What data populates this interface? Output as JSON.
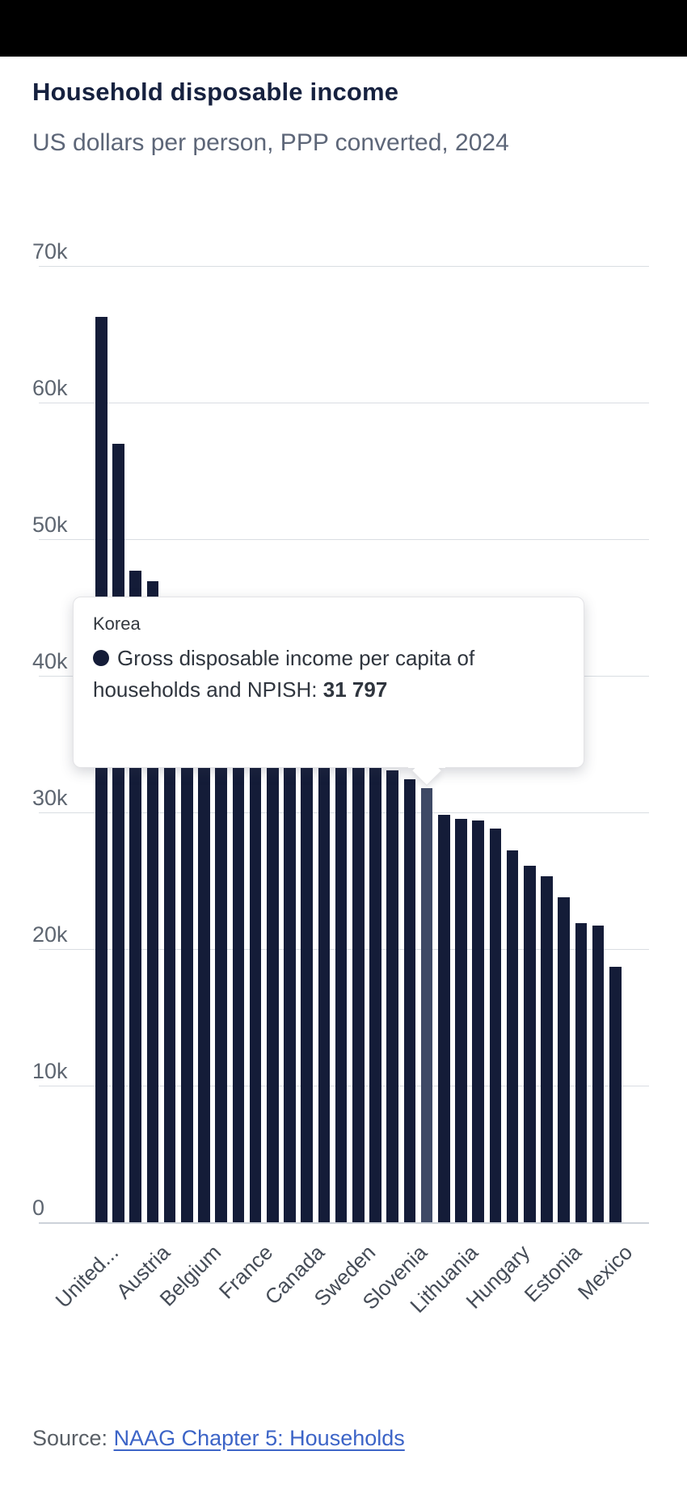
{
  "header": {
    "title": "Household disposable income",
    "subtitle": "US dollars per person, PPP converted, 2024"
  },
  "tooltip": {
    "title": "Korea",
    "series_label": "Gross disposable income per capita of households and NPISH:",
    "value": "31 797"
  },
  "source": {
    "prefix": "Source: ",
    "link_text": "NAAG Chapter 5: Households"
  },
  "colors": {
    "bar": "#141c38",
    "bar_highlight": "#3e4965",
    "gridline": "#d9dde2",
    "title_text": "#16213f",
    "subtitle_text": "#5d6678",
    "axis_text": "#5d6570",
    "link": "#3c64c7",
    "topbar": "#000000"
  },
  "chart_data": {
    "type": "bar",
    "title": "Household disposable income",
    "subtitle": "US dollars per person, PPP converted, 2024",
    "ylabel": "US dollars per person",
    "ylim": [
      0,
      70000
    ],
    "grid": true,
    "ytick_labels": [
      "70k",
      "60k",
      "50k",
      "40k",
      "30k",
      "20k",
      "10k",
      "0"
    ],
    "values": [
      66300,
      57000,
      47700,
      46900,
      45600,
      44300,
      43000,
      41800,
      40700,
      39600,
      38700,
      37800,
      36900,
      36100,
      35300,
      34500,
      33800,
      33100,
      32400,
      31797,
      29800,
      29500,
      29400,
      28800,
      27200,
      26100,
      25300,
      23800,
      21900,
      21700,
      18700
    ],
    "xtick_step": 3,
    "xtick_labels": [
      "United...",
      "Austria",
      "Belgium",
      "France",
      "Canada",
      "Sweden",
      "Slovenia",
      "Lithuania",
      "Hungary",
      "Estonia",
      "Mexico"
    ],
    "highlighted_index": 19,
    "highlighted_label": "Korea",
    "highlighted_value": 31797
  }
}
